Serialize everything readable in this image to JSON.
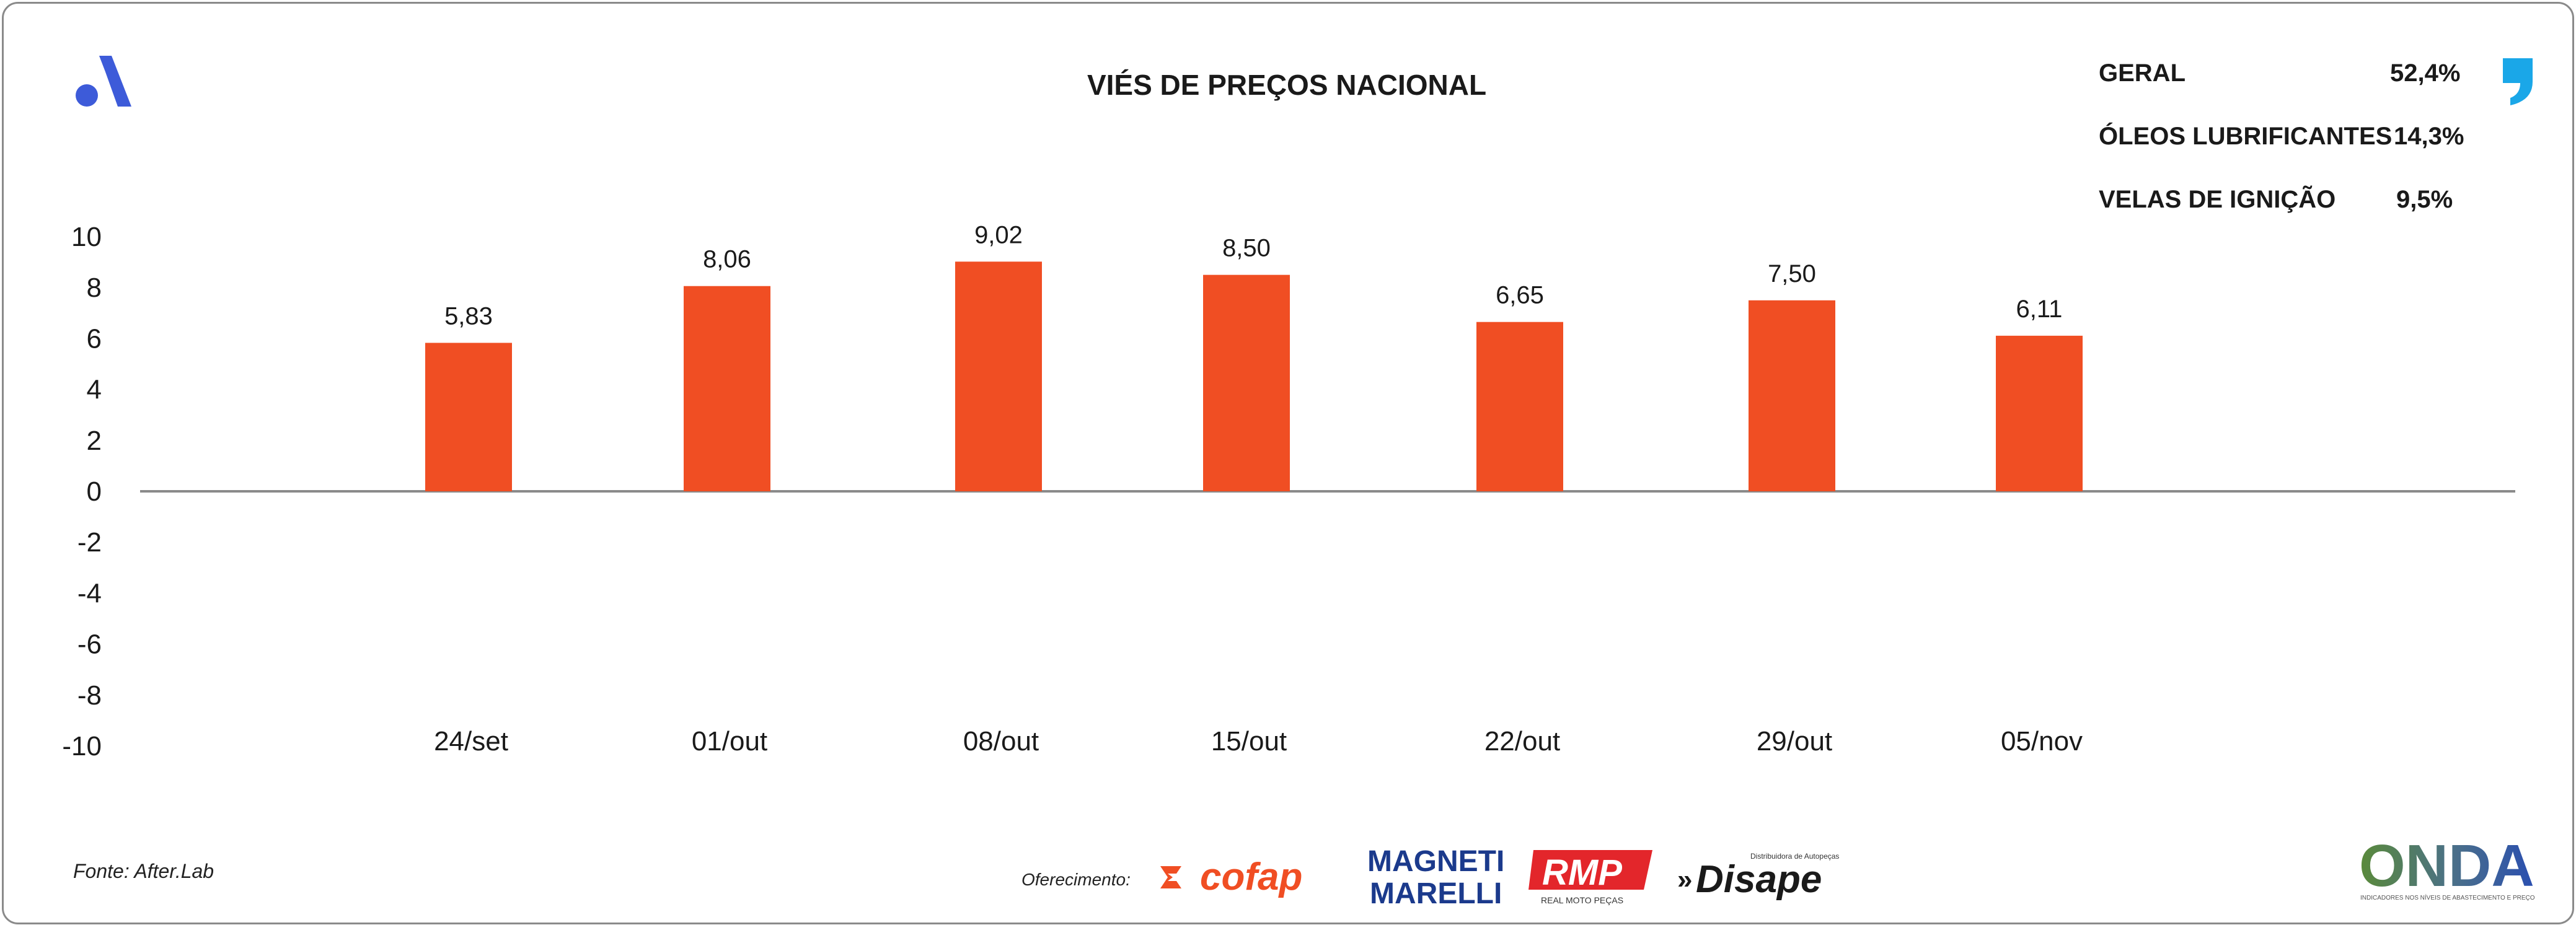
{
  "chart_data": {
    "type": "bar",
    "title": "VIÉS DE PREÇOS NACIONAL",
    "categories": [
      "24/set",
      "01/out",
      "08/out",
      "15/out",
      "22/out",
      "29/out",
      "05/nov"
    ],
    "values": [
      5.83,
      8.06,
      9.02,
      8.5,
      6.65,
      7.5,
      6.11
    ],
    "value_labels": [
      "5,83",
      "8,06",
      "9,02",
      "8,50",
      "6,65",
      "7,50",
      "6,11"
    ],
    "ylim": [
      -10,
      10
    ],
    "y_ticks": [
      10,
      8,
      6,
      4,
      2,
      0,
      -2,
      -4,
      -6,
      -8,
      -10
    ],
    "xlabel": "",
    "ylabel": "",
    "grid": false,
    "bar_color": "#f04e23",
    "axis_color": "#8a8a8a"
  },
  "summary": [
    {
      "label": "GERAL",
      "value": "52,4%"
    },
    {
      "label": "ÓLEOS LUBRIFICANTES",
      "value": "14,3%"
    },
    {
      "label": "VELAS DE IGNIÇÃO",
      "value": "9,5%"
    }
  ],
  "footer": {
    "source": "Fonte: After.Lab",
    "sponsor_label": "Oferecimento:",
    "sponsors": [
      {
        "name": "cofap",
        "text": "cofap",
        "icon": "cofap-logo",
        "color": "#f04e23"
      },
      {
        "name": "magneti-marelli",
        "text_top": "MAGNETI",
        "text_bottom": "MARELLI",
        "icon": "magneti-marelli-logo",
        "color": "#1b3a8c"
      },
      {
        "name": "rmp",
        "text": "RMP",
        "subtext": "REAL MOTO PEÇAS",
        "icon": "rmp-logo",
        "color": "#e3262b"
      },
      {
        "name": "disape",
        "text": "Disape",
        "subtext": "Distribuidora de Autopeças",
        "icon": "disape-logo",
        "color": "#1a1a1a"
      }
    ],
    "onda_text": "ONDA",
    "onda_subtext": "INDICADORES NOS NÍVEIS DE ABASTECIMENTO E PREÇO"
  },
  "icons": {
    "brand": "after-lab-logo",
    "quote": "quote-icon",
    "brand_color": "#3d5bd9",
    "quote_color": "#1aa7e8"
  }
}
